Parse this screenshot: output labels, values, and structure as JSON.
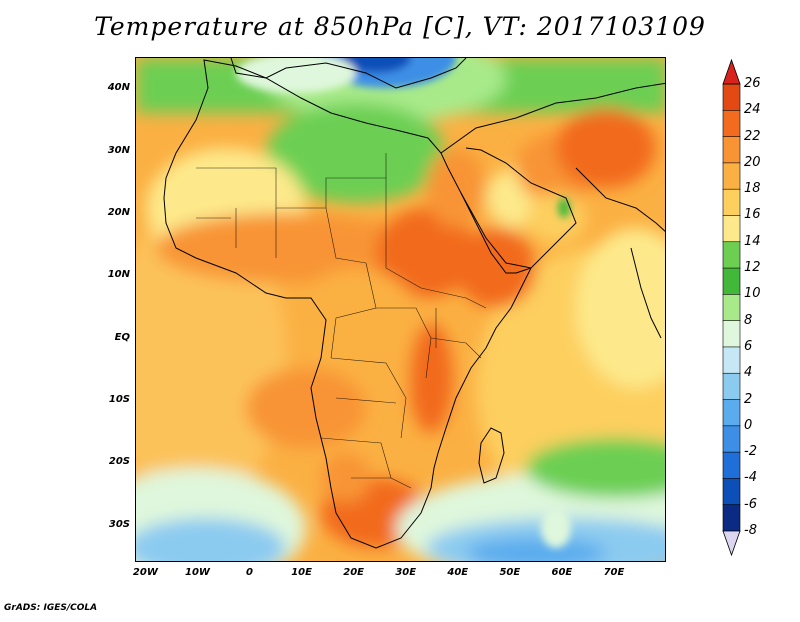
{
  "title": "Temperature at 850hPa [C], VT: 2017103109",
  "credit": "GrADS: IGES/COLA",
  "map": {
    "lat_labels": [
      "40N",
      "30N",
      "20N",
      "10N",
      "EQ",
      "10S",
      "20S",
      "30S"
    ],
    "lon_labels": [
      "20W",
      "10W",
      "0",
      "10E",
      "20E",
      "30E",
      "40E",
      "50E",
      "60E",
      "70E"
    ],
    "lat_range": [
      -36,
      45
    ],
    "lon_range": [
      -22,
      80
    ]
  },
  "colorbar": {
    "levels": [
      "26",
      "24",
      "22",
      "20",
      "18",
      "16",
      "14",
      "12",
      "10",
      "8",
      "6",
      "4",
      "2",
      "0",
      "-2",
      "-4",
      "-6",
      "-8"
    ],
    "colors": [
      "#e34a13",
      "#f26b1e",
      "#f89434",
      "#fbb043",
      "#fdcf5e",
      "#fde98b",
      "#6ccf52",
      "#42b83a",
      "#a8ea8a",
      "#dff7dc",
      "#c5e7f6",
      "#8ccbf0",
      "#5aacee",
      "#3d8fe6",
      "#1e6fd8",
      "#0c4fb8",
      "#0b2a84"
    ],
    "top_color": "#d8231c",
    "bottom_color": "#dcd6f0"
  }
}
